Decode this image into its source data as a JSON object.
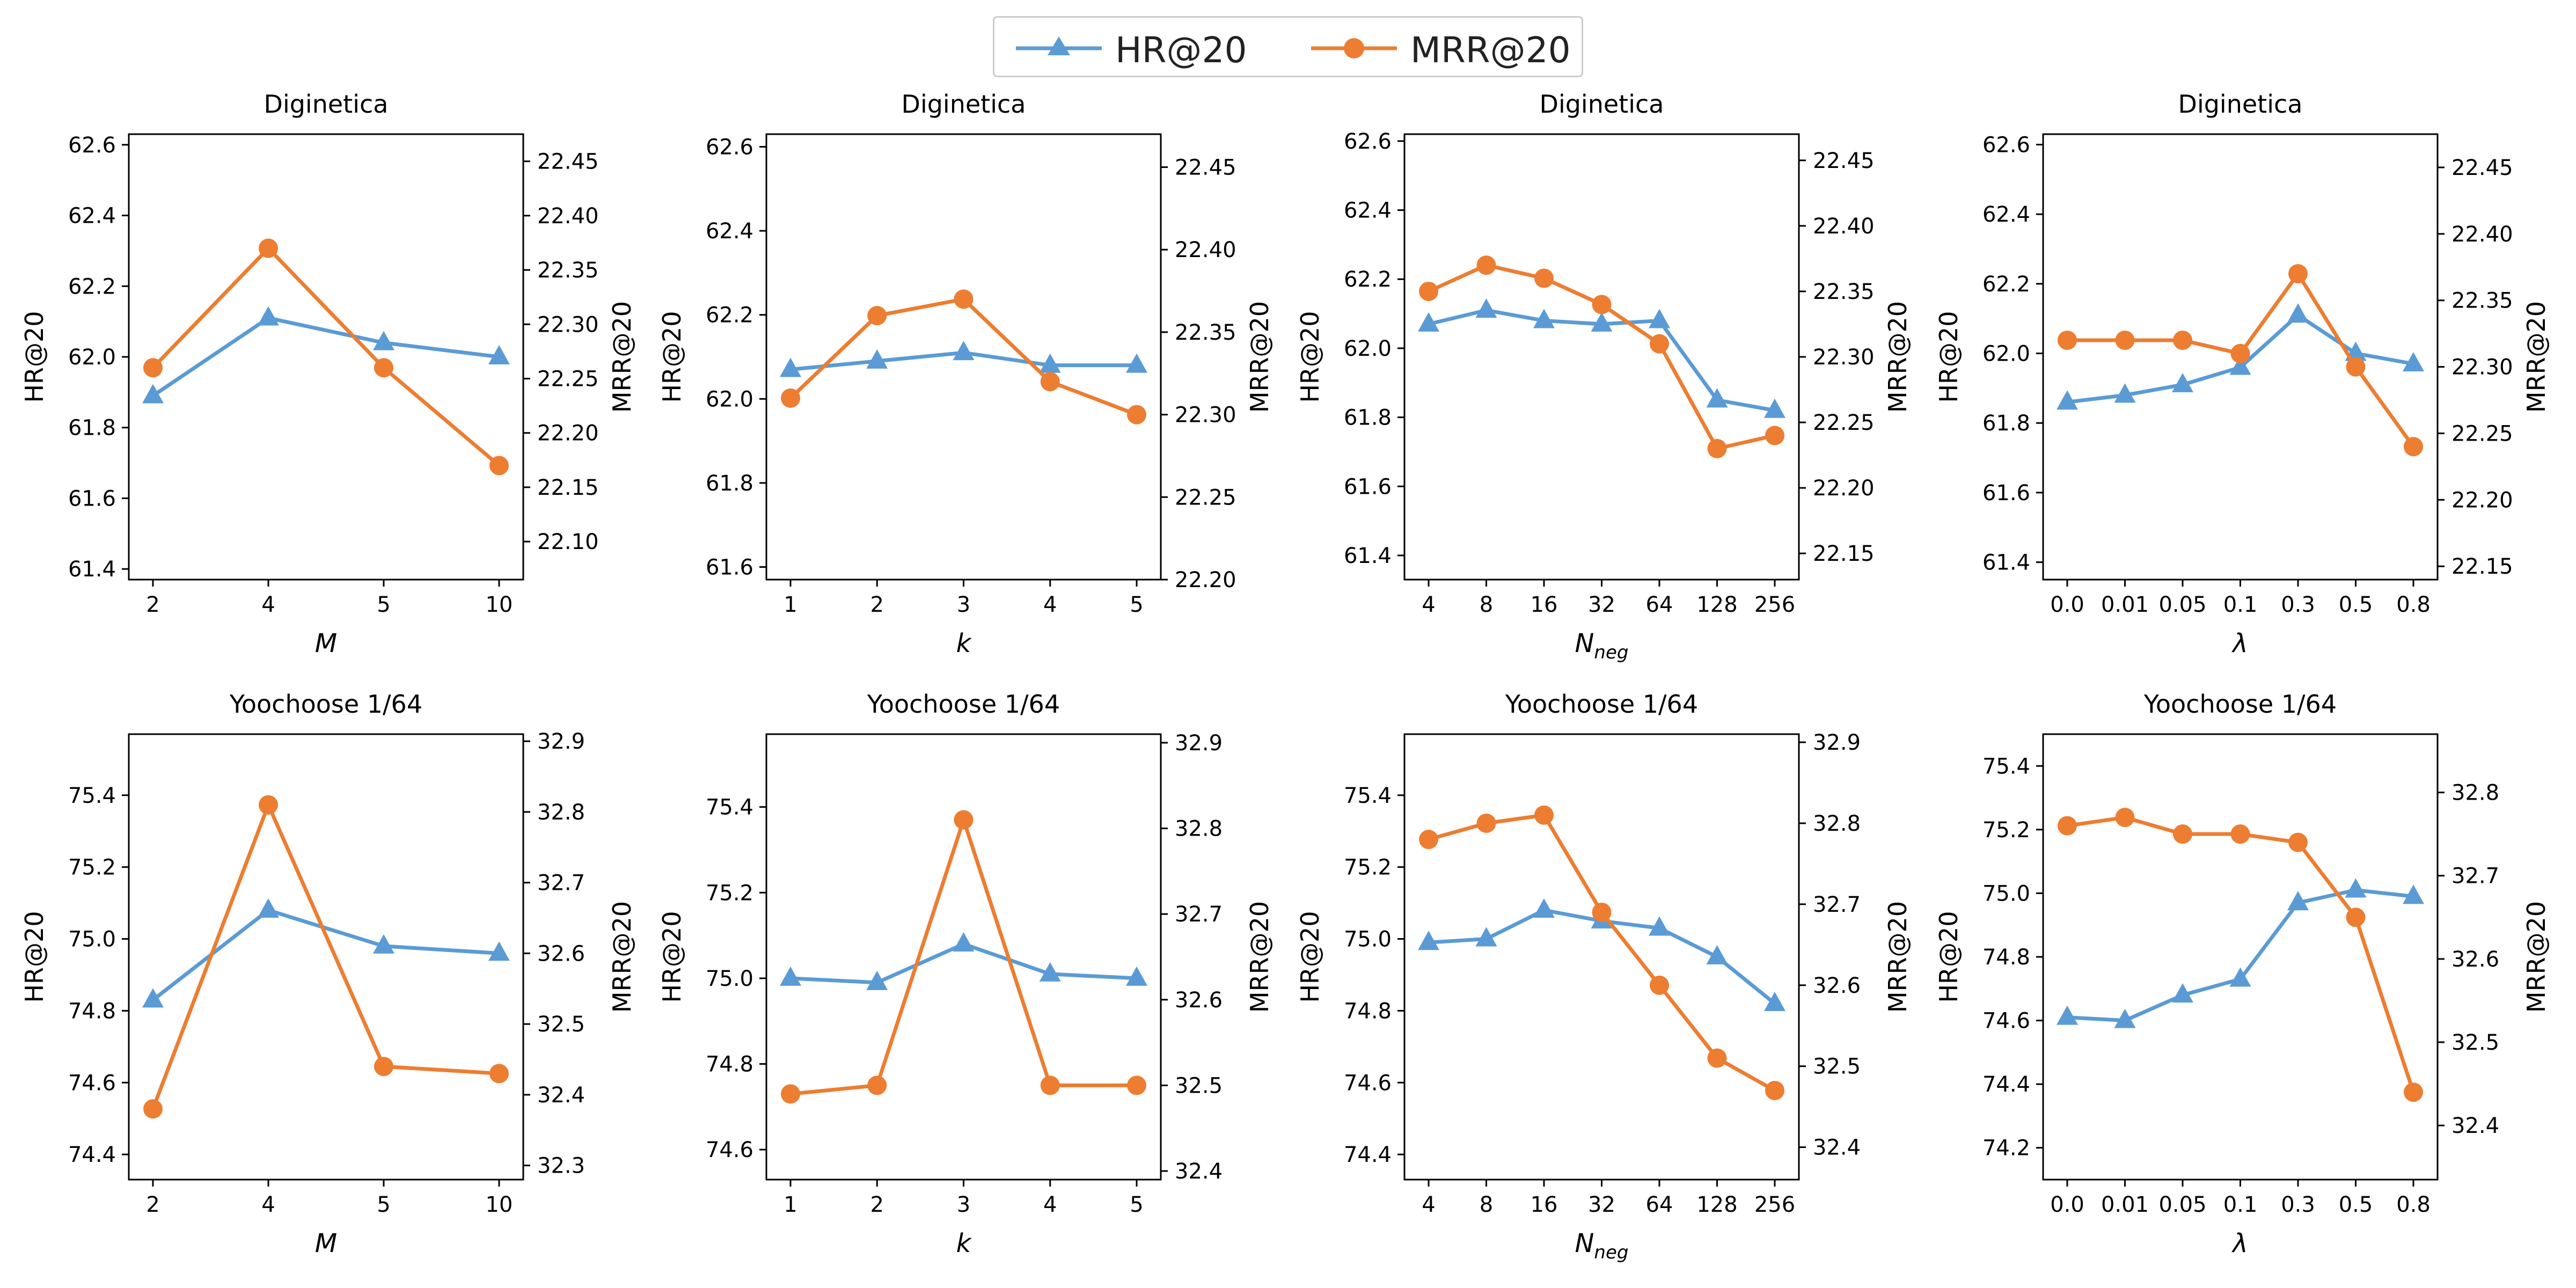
{
  "legend": {
    "hr_label": "HR@20",
    "mrr_label": "MRR@20"
  },
  "colors": {
    "hr": "#5b9bd5",
    "mrr": "#ed7d31",
    "axis": "#000000"
  },
  "chart_data": [
    {
      "type": "line",
      "title": "Diginetica",
      "xlabel": "M",
      "xlabel_sub": "",
      "ylabel_left": "HR@20",
      "ylabel_right": "MRR@20",
      "categories": [
        "2",
        "4",
        "5",
        "10"
      ],
      "ylim_left": [
        61.37,
        62.63
      ],
      "yticks_left": [
        "61.4",
        "61.6",
        "61.8",
        "62.0",
        "62.2",
        "62.4",
        "62.6"
      ],
      "ylim_right": [
        22.065,
        22.475
      ],
      "yticks_right": [
        "22.10",
        "22.15",
        "22.20",
        "22.25",
        "22.30",
        "22.35",
        "22.40",
        "22.45"
      ],
      "series": [
        {
          "name": "HR@20",
          "axis": "left",
          "values": [
            61.89,
            62.11,
            62.04,
            62.0
          ]
        },
        {
          "name": "MRR@20",
          "axis": "right",
          "values": [
            22.26,
            22.37,
            22.26,
            22.17
          ]
        }
      ]
    },
    {
      "type": "line",
      "title": "Diginetica",
      "xlabel": "k",
      "xlabel_sub": "",
      "ylabel_left": "HR@20",
      "ylabel_right": "MRR@20",
      "categories": [
        "1",
        "2",
        "3",
        "4",
        "5"
      ],
      "ylim_left": [
        61.57,
        62.63
      ],
      "yticks_left": [
        "61.6",
        "61.8",
        "62.0",
        "62.2",
        "62.4",
        "62.6"
      ],
      "ylim_right": [
        22.2,
        22.47
      ],
      "yticks_right": [
        "22.20",
        "22.25",
        "22.30",
        "22.35",
        "22.40",
        "22.45"
      ],
      "series": [
        {
          "name": "HR@20",
          "axis": "left",
          "values": [
            62.07,
            62.09,
            62.11,
            62.08,
            62.08
          ]
        },
        {
          "name": "MRR@20",
          "axis": "right",
          "values": [
            22.31,
            22.36,
            22.37,
            22.32,
            22.3
          ]
        }
      ]
    },
    {
      "type": "line",
      "title": "Diginetica",
      "xlabel": "N",
      "xlabel_sub": "neg",
      "ylabel_left": "HR@20",
      "ylabel_right": "MRR@20",
      "categories": [
        "4",
        "8",
        "16",
        "32",
        "64",
        "128",
        "256"
      ],
      "ylim_left": [
        61.33,
        62.62
      ],
      "yticks_left": [
        "61.4",
        "61.6",
        "61.8",
        "62.0",
        "62.2",
        "62.4",
        "62.6"
      ],
      "ylim_right": [
        22.13,
        22.47
      ],
      "yticks_right": [
        "22.15",
        "22.20",
        "22.25",
        "22.30",
        "22.35",
        "22.40",
        "22.45"
      ],
      "series": [
        {
          "name": "HR@20",
          "axis": "left",
          "values": [
            62.07,
            62.11,
            62.08,
            62.07,
            62.08,
            61.85,
            61.82
          ]
        },
        {
          "name": "MRR@20",
          "axis": "right",
          "values": [
            22.35,
            22.37,
            22.36,
            22.34,
            22.31,
            22.23,
            22.24
          ]
        }
      ]
    },
    {
      "type": "line",
      "title": "Diginetica",
      "xlabel": "λ",
      "xlabel_sub": "",
      "ylabel_left": "HR@20",
      "ylabel_right": "MRR@20",
      "categories": [
        "0.0",
        "0.01",
        "0.05",
        "0.1",
        "0.3",
        "0.5",
        "0.8"
      ],
      "ylim_left": [
        61.35,
        62.63
      ],
      "yticks_left": [
        "61.4",
        "61.6",
        "61.8",
        "62.0",
        "62.2",
        "62.4",
        "62.6"
      ],
      "ylim_right": [
        22.14,
        22.475
      ],
      "yticks_right": [
        "22.15",
        "22.20",
        "22.25",
        "22.30",
        "22.35",
        "22.40",
        "22.45"
      ],
      "series": [
        {
          "name": "HR@20",
          "axis": "left",
          "values": [
            61.86,
            61.88,
            61.91,
            61.96,
            62.11,
            62.0,
            61.97
          ]
        },
        {
          "name": "MRR@20",
          "axis": "right",
          "values": [
            22.32,
            22.32,
            22.32,
            22.31,
            22.37,
            22.3,
            22.24
          ]
        }
      ]
    },
    {
      "type": "line",
      "title": "Yoochoose 1/64",
      "xlabel": "M",
      "xlabel_sub": "",
      "ylabel_left": "HR@20",
      "ylabel_right": "MRR@20",
      "categories": [
        "2",
        "4",
        "5",
        "10"
      ],
      "ylim_left": [
        74.33,
        75.57
      ],
      "yticks_left": [
        "74.4",
        "74.6",
        "74.8",
        "75.0",
        "75.2",
        "75.4"
      ],
      "ylim_right": [
        32.28,
        32.91
      ],
      "yticks_right": [
        "32.3",
        "32.4",
        "32.5",
        "32.6",
        "32.7",
        "32.8",
        "32.9"
      ],
      "series": [
        {
          "name": "HR@20",
          "axis": "left",
          "values": [
            74.83,
            75.08,
            74.98,
            74.96
          ]
        },
        {
          "name": "MRR@20",
          "axis": "right",
          "values": [
            32.38,
            32.81,
            32.44,
            32.43
          ]
        }
      ]
    },
    {
      "type": "line",
      "title": "Yoochoose 1/64",
      "xlabel": "k",
      "xlabel_sub": "",
      "ylabel_left": "HR@20",
      "ylabel_right": "MRR@20",
      "categories": [
        "1",
        "2",
        "3",
        "4",
        "5"
      ],
      "ylim_left": [
        74.53,
        75.57
      ],
      "yticks_left": [
        "74.6",
        "74.8",
        "75.0",
        "75.2",
        "75.4"
      ],
      "ylim_right": [
        32.39,
        32.91
      ],
      "yticks_right": [
        "32.4",
        "32.5",
        "32.6",
        "32.7",
        "32.8",
        "32.9"
      ],
      "series": [
        {
          "name": "HR@20",
          "axis": "left",
          "values": [
            75.0,
            74.99,
            75.08,
            75.01,
            75.0
          ]
        },
        {
          "name": "MRR@20",
          "axis": "right",
          "values": [
            32.49,
            32.5,
            32.81,
            32.5,
            32.5
          ]
        }
      ]
    },
    {
      "type": "line",
      "title": "Yoochoose 1/64",
      "xlabel": "N",
      "xlabel_sub": "neg",
      "ylabel_left": "HR@20",
      "ylabel_right": "MRR@20",
      "categories": [
        "4",
        "8",
        "16",
        "32",
        "64",
        "128",
        "256"
      ],
      "ylim_left": [
        74.33,
        75.57
      ],
      "yticks_left": [
        "74.4",
        "74.6",
        "74.8",
        "75.0",
        "75.2",
        "75.4"
      ],
      "ylim_right": [
        32.36,
        32.91
      ],
      "yticks_right": [
        "32.4",
        "32.5",
        "32.6",
        "32.7",
        "32.8",
        "32.9"
      ],
      "series": [
        {
          "name": "HR@20",
          "axis": "left",
          "values": [
            74.99,
            75.0,
            75.08,
            75.05,
            75.03,
            74.95,
            74.82
          ]
        },
        {
          "name": "MRR@20",
          "axis": "right",
          "values": [
            32.78,
            32.8,
            32.81,
            32.69,
            32.6,
            32.51,
            32.47
          ]
        }
      ]
    },
    {
      "type": "line",
      "title": "Yoochoose 1/64",
      "xlabel": "λ",
      "xlabel_sub": "",
      "ylabel_left": "HR@20",
      "ylabel_right": "MRR@20",
      "categories": [
        "0.0",
        "0.01",
        "0.05",
        "0.1",
        "0.3",
        "0.5",
        "0.8"
      ],
      "ylim_left": [
        74.1,
        75.5
      ],
      "yticks_left": [
        "74.2",
        "74.4",
        "74.6",
        "74.8",
        "75.0",
        "75.2",
        "75.4"
      ],
      "ylim_right": [
        32.335,
        32.87
      ],
      "yticks_right": [
        "32.4",
        "32.5",
        "32.6",
        "32.7",
        "32.8"
      ],
      "series": [
        {
          "name": "HR@20",
          "axis": "left",
          "values": [
            74.61,
            74.6,
            74.68,
            74.73,
            74.97,
            75.01,
            74.99
          ]
        },
        {
          "name": "MRR@20",
          "axis": "right",
          "values": [
            32.76,
            32.77,
            32.75,
            32.75,
            32.74,
            32.65,
            32.44
          ]
        }
      ]
    }
  ]
}
